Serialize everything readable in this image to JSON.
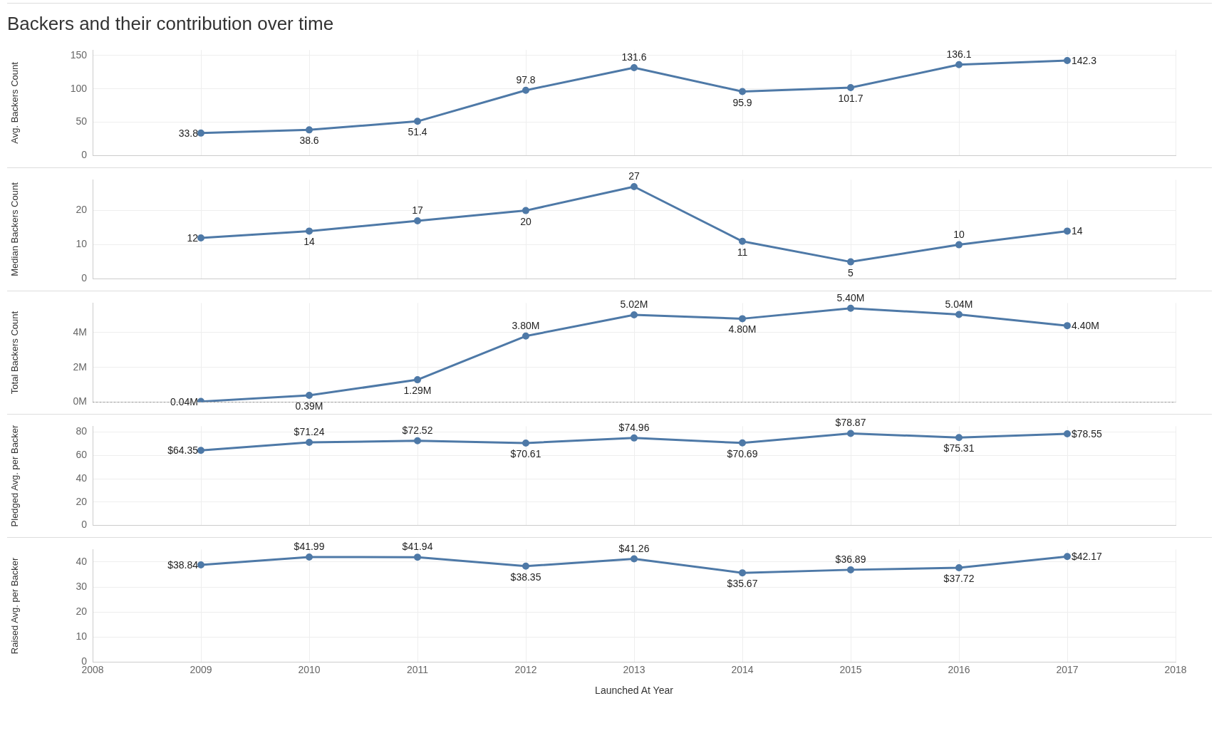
{
  "chart_data": [
    {
      "type": "line",
      "title": "Backers and their contribution over time",
      "ylabel": "Avg. Backers Count",
      "x": [
        2009,
        2010,
        2011,
        2012,
        2013,
        2014,
        2015,
        2016,
        2017
      ],
      "xlim": [
        2008,
        2018
      ],
      "xticks": [
        2008,
        2009,
        2010,
        2011,
        2012,
        2013,
        2014,
        2015,
        2016,
        2017,
        2018
      ],
      "ylim": [
        0,
        158
      ],
      "yticks": [
        0,
        50,
        100,
        150
      ],
      "grid": true,
      "marker": "circle",
      "tick_labels": "y",
      "series": [
        {
          "color": "#4e79a7",
          "values": [
            33.8,
            38.6,
            51.4,
            97.8,
            131.6,
            95.9,
            101.7,
            136.1,
            142.3
          ],
          "value_labels": [
            "33.8",
            "38.6",
            "51.4",
            "97.8",
            "131.6",
            "95.9",
            "101.7",
            "136.1",
            "142.3"
          ]
        }
      ]
    },
    {
      "type": "line",
      "ylabel": "Median Backers Count",
      "x": [
        2009,
        2010,
        2011,
        2012,
        2013,
        2014,
        2015,
        2016,
        2017
      ],
      "xlim": [
        2008,
        2018
      ],
      "xticks": [
        2008,
        2009,
        2010,
        2011,
        2012,
        2013,
        2014,
        2015,
        2016,
        2017,
        2018
      ],
      "ylim": [
        0,
        29
      ],
      "yticks": [
        0,
        10,
        20
      ],
      "grid": true,
      "marker": "circle",
      "tick_labels": "y",
      "series": [
        {
          "color": "#4e79a7",
          "values": [
            12,
            14,
            17,
            20,
            27,
            11,
            5,
            10,
            14
          ],
          "value_labels": [
            "12",
            "14",
            "17",
            "20",
            "27",
            "11",
            "5",
            "10",
            "14"
          ]
        }
      ]
    },
    {
      "type": "line",
      "ylabel": "Total Backers Count",
      "x": [
        2009,
        2010,
        2011,
        2012,
        2013,
        2014,
        2015,
        2016,
        2017
      ],
      "xlim": [
        2008,
        2018
      ],
      "xticks": [
        2008,
        2009,
        2010,
        2011,
        2012,
        2013,
        2014,
        2015,
        2016,
        2017,
        2018
      ],
      "ylim": [
        0,
        5.7
      ],
      "yticks": [
        {
          "value": 0,
          "label": "0M"
        },
        {
          "value": 2,
          "label": "2M"
        },
        {
          "value": 4,
          "label": "4M"
        }
      ],
      "grid": true,
      "marker": "circle",
      "tick_labels": "y",
      "ref_lines": [
        {
          "axis": "y",
          "value": 0,
          "line_style": "dotted",
          "color": "#999999"
        }
      ],
      "series": [
        {
          "color": "#4e79a7",
          "values": [
            0.04,
            0.39,
            1.29,
            3.8,
            5.02,
            4.8,
            5.4,
            5.04,
            4.4
          ],
          "value_labels": [
            "0.04M",
            "0.39M",
            "1.29M",
            "3.80M",
            "5.02M",
            "4.80M",
            "5.40M",
            "5.04M",
            "4.40M"
          ]
        }
      ]
    },
    {
      "type": "line",
      "ylabel": "Pledged Avg. per Backer",
      "x": [
        2009,
        2010,
        2011,
        2012,
        2013,
        2014,
        2015,
        2016,
        2017
      ],
      "xlim": [
        2008,
        2018
      ],
      "xticks": [
        2008,
        2009,
        2010,
        2011,
        2012,
        2013,
        2014,
        2015,
        2016,
        2017,
        2018
      ],
      "ylim": [
        0,
        85
      ],
      "yticks": [
        0,
        20,
        40,
        60,
        80
      ],
      "grid": true,
      "marker": "circle",
      "tick_labels": "y",
      "series": [
        {
          "color": "#4e79a7",
          "values": [
            64.35,
            71.24,
            72.52,
            70.61,
            74.96,
            70.69,
            78.87,
            75.31,
            78.55
          ],
          "value_labels": [
            "$64.35",
            "$71.24",
            "$72.52",
            "$70.61",
            "$74.96",
            "$70.69",
            "$78.87",
            "$75.31",
            "$78.55"
          ]
        }
      ]
    },
    {
      "type": "line",
      "ylabel": "Raised Avg. per Backer",
      "xlabel": "Launched At Year",
      "x": [
        2009,
        2010,
        2011,
        2012,
        2013,
        2014,
        2015,
        2016,
        2017
      ],
      "xlim": [
        2008,
        2018
      ],
      "xticks": [
        2008,
        2009,
        2010,
        2011,
        2012,
        2013,
        2014,
        2015,
        2016,
        2017,
        2018
      ],
      "ylim": [
        0,
        45
      ],
      "yticks": [
        0,
        10,
        20,
        30,
        40
      ],
      "grid": true,
      "marker": "circle",
      "series": [
        {
          "color": "#4e79a7",
          "values": [
            38.84,
            41.99,
            41.94,
            38.35,
            41.26,
            35.67,
            36.89,
            37.72,
            42.17
          ],
          "value_labels": [
            "$38.84",
            "$41.99",
            "$41.94",
            "$38.35",
            "$41.26",
            "$35.67",
            "$36.89",
            "$37.72",
            "$42.17"
          ]
        }
      ]
    }
  ]
}
